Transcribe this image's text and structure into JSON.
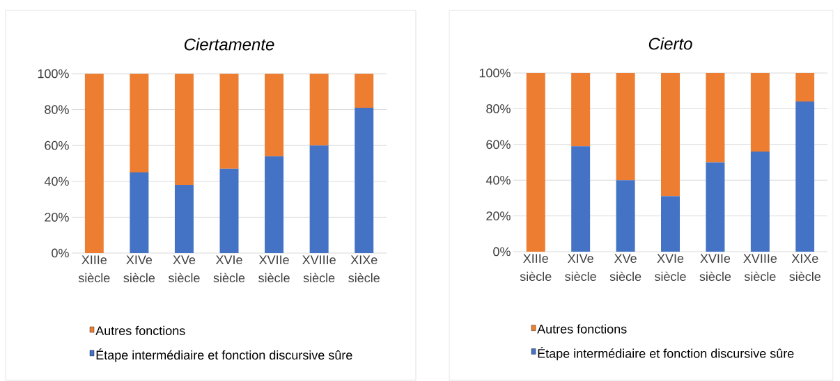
{
  "chart_data": [
    {
      "type": "bar",
      "title": "Ciertamente",
      "stacked": true,
      "grid": "y",
      "legend": "bottom",
      "categories": [
        "XIIIe siècle",
        "XIVe siècle",
        "XVe siècle",
        "XVIe siècle",
        "XVIIe siècle",
        "XVIIIe siècle",
        "XIXe siècle"
      ],
      "ylim": [
        0,
        100
      ],
      "yticks": [
        {
          "value": 0,
          "label": "0%"
        },
        {
          "value": 20,
          "label": "20%"
        },
        {
          "value": 40,
          "label": "40%"
        },
        {
          "value": 60,
          "label": "60%"
        },
        {
          "value": 80,
          "label": "80%"
        },
        {
          "value": 100,
          "label": "100%"
        }
      ],
      "series": [
        {
          "name": "Étape intermédiaire et fonction discursive sûre",
          "color": "#4472c4",
          "values": [
            0,
            45,
            38,
            47,
            54,
            60,
            81
          ]
        },
        {
          "name": "Autres fonctions",
          "color": "#ed7d31",
          "values": [
            100,
            55,
            62,
            53,
            46,
            40,
            19
          ]
        }
      ]
    },
    {
      "type": "bar",
      "title": "Cierto",
      "stacked": true,
      "grid": "y",
      "legend": "bottom",
      "categories": [
        "XIIIe siècle",
        "XIVe siècle",
        "XVe siècle",
        "XVIe siècle",
        "XVIIe siècle",
        "XVIIIe siècle",
        "XIXe siècle"
      ],
      "ylim": [
        0,
        100
      ],
      "yticks": [
        {
          "value": 0,
          "label": "0%"
        },
        {
          "value": 20,
          "label": "20%"
        },
        {
          "value": 40,
          "label": "40%"
        },
        {
          "value": 60,
          "label": "60%"
        },
        {
          "value": 80,
          "label": "80%"
        },
        {
          "value": 100,
          "label": "100%"
        }
      ],
      "series": [
        {
          "name": "Étape intermédiaire et fonction discursive sûre",
          "color": "#4472c4",
          "values": [
            0,
            59,
            40,
            31,
            50,
            56,
            84
          ]
        },
        {
          "name": "Autres fonctions",
          "color": "#ed7d31",
          "values": [
            100,
            41,
            60,
            69,
            50,
            44,
            16
          ]
        }
      ]
    }
  ]
}
